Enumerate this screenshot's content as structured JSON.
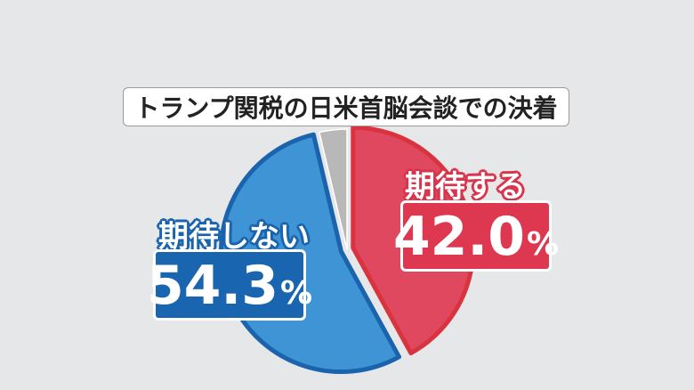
{
  "chart_data": {
    "type": "pie",
    "title": "トランプ関税の日米首脳会談での決着",
    "slices": [
      {
        "label": "期待する",
        "value": 42.0,
        "value_text": "42.0",
        "unit": "%",
        "color": "#e0485f",
        "border": "#d8333f"
      },
      {
        "label": "期待しない",
        "value": 54.3,
        "value_text": "54.3",
        "unit": "%",
        "color": "#3f94d6",
        "border": "#1a63ad"
      },
      {
        "label": "",
        "value": 3.7,
        "color": "#b8b8b8",
        "border": "#ffffff"
      }
    ]
  },
  "colors": {
    "background": "#e6e7e9"
  }
}
